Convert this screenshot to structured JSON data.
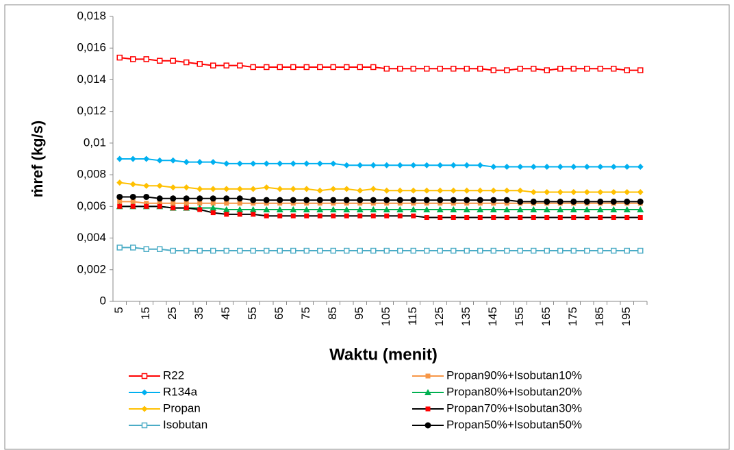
{
  "chart_data": {
    "type": "line",
    "y_label": "ṁref (kg/s)",
    "x_label": "Waktu (menit)",
    "categories": [
      5,
      null,
      15,
      null,
      25,
      null,
      35,
      null,
      45,
      null,
      55,
      null,
      65,
      null,
      75,
      null,
      85,
      null,
      95,
      null,
      105,
      null,
      115,
      null,
      125,
      null,
      135,
      null,
      145,
      null,
      155,
      null,
      165,
      null,
      175,
      null,
      185,
      null,
      195,
      null
    ],
    "ylim": [
      0,
      0.018
    ],
    "yticks": [
      0,
      {
        "value": 0.002,
        "label": "0,002"
      },
      {
        "value": 0.004,
        "label": "0,004"
      },
      {
        "value": 0.006,
        "label": "0,006"
      },
      {
        "value": 0.008,
        "label": "0,008"
      },
      {
        "value": 0.01,
        "label": "0,01"
      },
      {
        "value": 0.012,
        "label": "0,012"
      },
      {
        "value": 0.014,
        "label": "0,014"
      },
      {
        "value": 0.016,
        "label": "0,016"
      },
      {
        "value": 0.018,
        "label": "0,018"
      }
    ],
    "grid": false,
    "series": [
      {
        "name": "R22",
        "color": "#ff0000",
        "marker": "square-open",
        "values": [
          0.0154,
          0.0153,
          0.0153,
          0.0152,
          0.0152,
          0.0151,
          0.015,
          0.0149,
          0.0149,
          0.0149,
          0.0148,
          0.0148,
          0.0148,
          0.0148,
          0.0148,
          0.0148,
          0.0148,
          0.0148,
          0.0148,
          0.0148,
          0.0147,
          0.0147,
          0.0147,
          0.0147,
          0.0147,
          0.0147,
          0.0147,
          0.0147,
          0.0146,
          0.0146,
          0.0147,
          0.0147,
          0.0146,
          0.0147,
          0.0147,
          0.0147,
          0.0147,
          0.0147,
          0.0146,
          0.0146
        ]
      },
      {
        "name": "R134a",
        "color": "#00b0f0",
        "marker": "diamond",
        "values": [
          0.009,
          0.009,
          0.009,
          0.0089,
          0.0089,
          0.0088,
          0.0088,
          0.0088,
          0.0087,
          0.0087,
          0.0087,
          0.0087,
          0.0087,
          0.0087,
          0.0087,
          0.0087,
          0.0087,
          0.0086,
          0.0086,
          0.0086,
          0.0086,
          0.0086,
          0.0086,
          0.0086,
          0.0086,
          0.0086,
          0.0086,
          0.0086,
          0.0085,
          0.0085,
          0.0085,
          0.0085,
          0.0085,
          0.0085,
          0.0085,
          0.0085,
          0.0085,
          0.0085,
          0.0085,
          0.0085
        ]
      },
      {
        "name": "Propan",
        "color": "#ffc000",
        "marker": "diamond",
        "values": [
          0.0075,
          0.0074,
          0.0073,
          0.0073,
          0.0072,
          0.0072,
          0.0071,
          0.0071,
          0.0071,
          0.0071,
          0.0071,
          0.0072,
          0.0071,
          0.0071,
          0.0071,
          0.007,
          0.0071,
          0.0071,
          0.007,
          0.0071,
          0.007,
          0.007,
          0.007,
          0.007,
          0.007,
          0.007,
          0.007,
          0.007,
          0.007,
          0.007,
          0.007,
          0.0069,
          0.0069,
          0.0069,
          0.0069,
          0.0069,
          0.0069,
          0.0069,
          0.0069,
          0.0069
        ]
      },
      {
        "name": "Isobutan",
        "color": "#4bacc6",
        "marker": "square-open",
        "values": [
          0.0034,
          0.0034,
          0.0033,
          0.0033,
          0.0032,
          0.0032,
          0.0032,
          0.0032,
          0.0032,
          0.0032,
          0.0032,
          0.0032,
          0.0032,
          0.0032,
          0.0032,
          0.0032,
          0.0032,
          0.0032,
          0.0032,
          0.0032,
          0.0032,
          0.0032,
          0.0032,
          0.0032,
          0.0032,
          0.0032,
          0.0032,
          0.0032,
          0.0032,
          0.0032,
          0.0032,
          0.0032,
          0.0032,
          0.0032,
          0.0032,
          0.0032,
          0.0032,
          0.0032,
          0.0032,
          0.0032
        ]
      },
      {
        "name": "Propan90%+Isobutan10%",
        "color": "#f79646",
        "marker": "square",
        "values": [
          0.0063,
          0.0063,
          0.0062,
          0.0062,
          0.0062,
          0.0062,
          0.0062,
          0.0062,
          0.0062,
          0.0062,
          0.0062,
          0.0062,
          0.0062,
          0.0062,
          0.0062,
          0.0062,
          0.0062,
          0.0062,
          0.0062,
          0.0062,
          0.0062,
          0.0062,
          0.0062,
          0.0062,
          0.0062,
          0.0062,
          0.0062,
          0.0062,
          0.0062,
          0.0062,
          0.0062,
          0.0062,
          0.0062,
          0.0062,
          0.0062,
          0.0062,
          0.0062,
          0.0062,
          0.0062,
          0.0062
        ]
      },
      {
        "name": "Propan80%+Isobutan20%",
        "color": "#00b050",
        "marker": "triangle",
        "values": [
          0.006,
          0.006,
          0.006,
          0.006,
          0.0059,
          0.0059,
          0.0059,
          0.0059,
          0.0058,
          0.0058,
          0.0058,
          0.0058,
          0.0058,
          0.0058,
          0.0058,
          0.0058,
          0.0058,
          0.0058,
          0.0058,
          0.0058,
          0.0058,
          0.0058,
          0.0058,
          0.0058,
          0.0058,
          0.0058,
          0.0058,
          0.0058,
          0.0058,
          0.0058,
          0.0058,
          0.0058,
          0.0058,
          0.0058,
          0.0058,
          0.0058,
          0.0058,
          0.0058,
          0.0058,
          0.0058
        ]
      },
      {
        "name": "Propan70%+Isobutan30%",
        "color": "#000000",
        "marker": "square",
        "marker_color": "#ff0000",
        "values": [
          0.006,
          0.006,
          0.006,
          0.006,
          0.0059,
          0.0059,
          0.0058,
          0.0056,
          0.0055,
          0.0055,
          0.0055,
          0.0054,
          0.0054,
          0.0054,
          0.0054,
          0.0054,
          0.0054,
          0.0054,
          0.0054,
          0.0054,
          0.0054,
          0.0054,
          0.0054,
          0.0053,
          0.0053,
          0.0053,
          0.0053,
          0.0053,
          0.0053,
          0.0053,
          0.0053,
          0.0053,
          0.0053,
          0.0053,
          0.0053,
          0.0053,
          0.0053,
          0.0053,
          0.0053,
          0.0053
        ]
      },
      {
        "name": "Propan50%+Isobutan50%",
        "color": "#000000",
        "marker": "circle",
        "values": [
          0.0066,
          0.0066,
          0.0066,
          0.0065,
          0.0065,
          0.0065,
          0.0065,
          0.0065,
          0.0065,
          0.0065,
          0.0064,
          0.0064,
          0.0064,
          0.0064,
          0.0064,
          0.0064,
          0.0064,
          0.0064,
          0.0064,
          0.0064,
          0.0064,
          0.0064,
          0.0064,
          0.0064,
          0.0064,
          0.0064,
          0.0064,
          0.0064,
          0.0064,
          0.0064,
          0.0063,
          0.0063,
          0.0063,
          0.0063,
          0.0063,
          0.0063,
          0.0063,
          0.0063,
          0.0063,
          0.0063
        ]
      }
    ]
  }
}
